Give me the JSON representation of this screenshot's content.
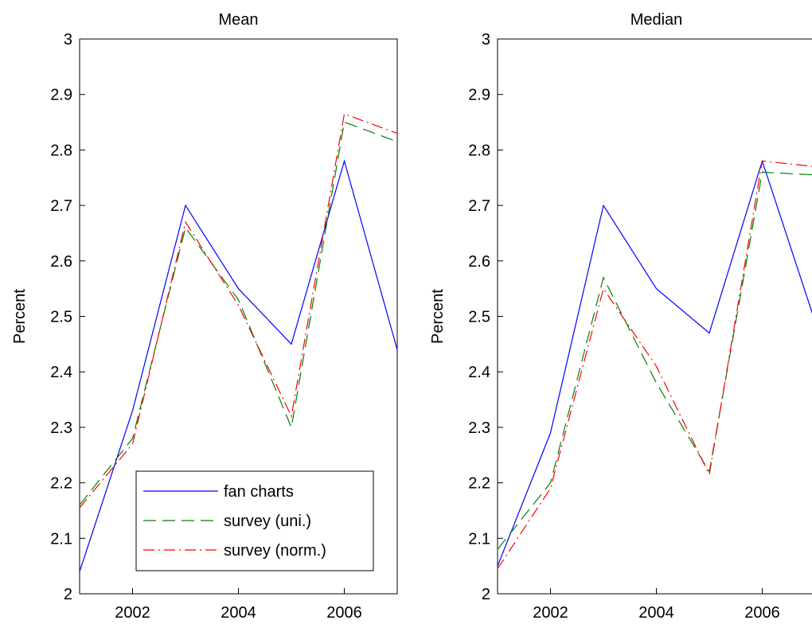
{
  "chart_data": [
    {
      "type": "line",
      "title": "Mean",
      "xlabel": "",
      "ylabel": "Percent",
      "xlim": [
        2001,
        2007
      ],
      "ylim": [
        2,
        3
      ],
      "xticks": [
        2002,
        2004,
        2006
      ],
      "yticks": [
        "2",
        "2.1",
        "2.2",
        "2.3",
        "2.4",
        "2.5",
        "2.6",
        "2.7",
        "2.8",
        "2.9",
        "3"
      ],
      "grid": false,
      "legend": "lower-right",
      "x": [
        2001,
        2002,
        2003,
        2004,
        2005,
        2006,
        2007
      ],
      "series": [
        {
          "name": "fan charts",
          "color": "#0000ff",
          "dash": "solid",
          "values": [
            2.04,
            2.33,
            2.7,
            2.55,
            2.45,
            2.78,
            2.44
          ]
        },
        {
          "name": "survey (uni.)",
          "color": "#008000",
          "dash": "dashed",
          "values": [
            2.16,
            2.28,
            2.66,
            2.53,
            2.3,
            2.85,
            2.815
          ]
        },
        {
          "name": "survey (norm.)",
          "color": "#ff0000",
          "dash": "dashdot",
          "values": [
            2.155,
            2.27,
            2.67,
            2.52,
            2.32,
            2.865,
            2.83
          ]
        }
      ]
    },
    {
      "type": "line",
      "title": "Median",
      "xlabel": "",
      "ylabel": "Percent",
      "xlim": [
        2001,
        2007
      ],
      "ylim": [
        2,
        3
      ],
      "xticks": [
        2002,
        2004,
        2006
      ],
      "yticks": [
        "2",
        "2.1",
        "2.2",
        "2.3",
        "2.4",
        "2.5",
        "2.6",
        "2.7",
        "2.8",
        "2.9",
        "3"
      ],
      "grid": false,
      "legend": "none",
      "x": [
        2001,
        2002,
        2003,
        2004,
        2005,
        2006,
        2007
      ],
      "series": [
        {
          "name": "fan charts",
          "color": "#0000ff",
          "dash": "solid",
          "values": [
            2.05,
            2.29,
            2.7,
            2.55,
            2.47,
            2.78,
            2.49
          ]
        },
        {
          "name": "survey (uni.)",
          "color": "#008000",
          "dash": "dashed",
          "values": [
            2.08,
            2.2,
            2.57,
            2.38,
            2.22,
            2.76,
            2.755
          ]
        },
        {
          "name": "survey (norm.)",
          "color": "#ff0000",
          "dash": "dashdot",
          "values": [
            2.045,
            2.19,
            2.55,
            2.41,
            2.215,
            2.78,
            2.77
          ]
        }
      ]
    }
  ]
}
